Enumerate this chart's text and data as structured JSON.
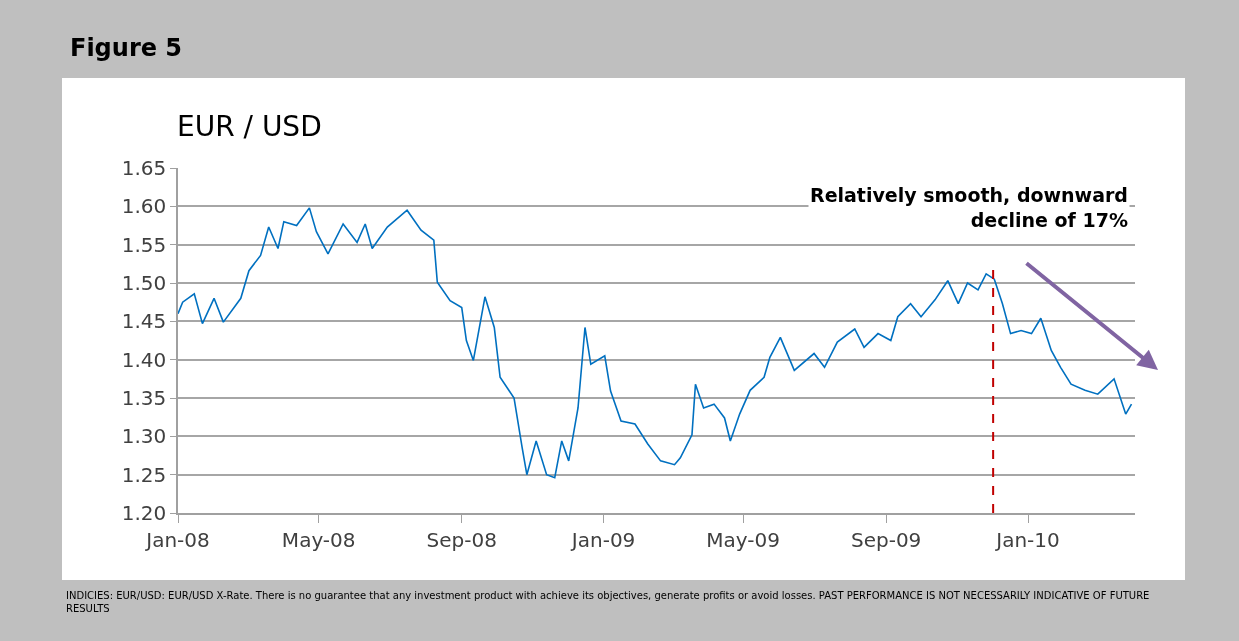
{
  "chart_data": {
    "type": "line",
    "title": "Figure 5",
    "subtitle": "EUR / USD",
    "x": [
      "2008-01-01",
      "2008-01-05",
      "2008-01-15",
      "2008-01-22",
      "2008-02-01",
      "2008-02-09",
      "2008-02-24",
      "2008-03-02",
      "2008-03-12",
      "2008-03-19",
      "2008-03-27",
      "2008-04-01",
      "2008-04-12",
      "2008-04-23",
      "2008-04-29",
      "2008-05-09",
      "2008-05-22",
      "2008-06-03",
      "2008-06-10",
      "2008-06-16",
      "2008-06-29",
      "2008-07-16",
      "2008-07-28",
      "2008-08-08",
      "2008-08-11",
      "2008-08-22",
      "2008-09-01",
      "2008-09-05",
      "2008-09-11",
      "2008-09-21",
      "2008-09-29",
      "2008-10-04",
      "2008-10-16",
      "2008-10-23",
      "2008-10-27",
      "2008-11-04",
      "2008-11-13",
      "2008-11-20",
      "2008-11-26",
      "2008-12-02",
      "2008-12-10",
      "2008-12-16",
      "2008-12-21",
      "2009-01-02",
      "2009-01-07",
      "2009-01-16",
      "2009-01-28",
      "2009-02-08",
      "2009-02-19",
      "2009-03-03",
      "2009-03-08",
      "2009-03-18",
      "2009-03-21",
      "2009-03-28",
      "2009-04-06",
      "2009-04-15",
      "2009-04-20",
      "2009-04-28",
      "2009-05-07",
      "2009-05-19",
      "2009-05-24",
      "2009-06-02",
      "2009-06-14",
      "2009-07-01",
      "2009-07-10",
      "2009-07-21",
      "2009-08-05",
      "2009-08-13",
      "2009-08-25",
      "2009-09-05",
      "2009-09-11",
      "2009-09-22",
      "2009-10-01",
      "2009-10-13",
      "2009-10-24",
      "2009-11-02",
      "2009-11-10",
      "2009-11-19",
      "2009-11-26",
      "2009-12-03",
      "2009-12-10",
      "2009-12-17",
      "2009-12-26",
      "2010-01-04",
      "2010-01-12",
      "2010-01-21",
      "2010-01-29",
      "2010-02-07",
      "2010-02-19",
      "2010-03-02",
      "2010-03-16",
      "2010-03-26",
      "2010-03-31"
    ],
    "series": [
      {
        "color": "#0070c0",
        "values": [
          1.46,
          1.475,
          1.486,
          1.447,
          1.48,
          1.449,
          1.48,
          1.516,
          1.536,
          1.573,
          1.545,
          1.58,
          1.575,
          1.598,
          1.567,
          1.538,
          1.577,
          1.553,
          1.577,
          1.545,
          1.573,
          1.595,
          1.569,
          1.556,
          1.501,
          1.477,
          1.468,
          1.425,
          1.399,
          1.482,
          1.442,
          1.377,
          1.35,
          1.285,
          1.25,
          1.294,
          1.25,
          1.246,
          1.294,
          1.268,
          1.337,
          1.442,
          1.394,
          1.405,
          1.359,
          1.32,
          1.316,
          1.29,
          1.268,
          1.263,
          1.272,
          1.302,
          1.368,
          1.337,
          1.342,
          1.324,
          1.294,
          1.329,
          1.36,
          1.377,
          1.403,
          1.429,
          1.386,
          1.408,
          1.39,
          1.423,
          1.44,
          1.416,
          1.434,
          1.425,
          1.456,
          1.473,
          1.456,
          1.478,
          1.503,
          1.473,
          1.5,
          1.491,
          1.512,
          1.505,
          1.473,
          1.434,
          1.438,
          1.434,
          1.454,
          1.412,
          1.39,
          1.368,
          1.36,
          1.355,
          1.375,
          1.329,
          1.342
        ]
      }
    ],
    "xlim": [
      "2008-01-01",
      "2010-04-03"
    ],
    "xticks": [
      {
        "value": "2008-01-01",
        "label": "Jan-08"
      },
      {
        "value": "2008-05-01",
        "label": "May-08"
      },
      {
        "value": "2008-09-01",
        "label": "Sep-08"
      },
      {
        "value": "2009-01-01",
        "label": "Jan-09"
      },
      {
        "value": "2009-05-01",
        "label": "May-09"
      },
      {
        "value": "2009-09-01",
        "label": "Sep-09"
      },
      {
        "value": "2010-01-01",
        "label": "Jan-10"
      }
    ],
    "ylim": [
      1.2,
      1.65
    ],
    "yticks": [
      {
        "value": 1.2,
        "label": "1.20"
      },
      1.25,
      {
        "value": 1.3,
        "label": "1.30"
      },
      1.35,
      {
        "value": 1.4,
        "label": "1.40"
      },
      1.45,
      {
        "value": 1.5,
        "label": "1.50"
      },
      1.55,
      {
        "value": 1.6,
        "label": "1.60"
      },
      1.65
    ],
    "grid": "y",
    "marker": "none",
    "line_style": "solid",
    "ref_lines": [
      {
        "axis": "x",
        "value": "2009-12-02",
        "color": "#c00000",
        "line_style": "dashed"
      }
    ],
    "annotations": [
      "Relatively smooth, downward decline of 17%",
      "INDICIES: EUR/USD: EUR/USD X-Rate. There is no guarantee that any investment product with achieve its objectives, generate profits or avoid losses. PAST PERFORMANCE IS NOT NECESSARILY INDICATIVE OF FUTURE RESULTS"
    ]
  }
}
